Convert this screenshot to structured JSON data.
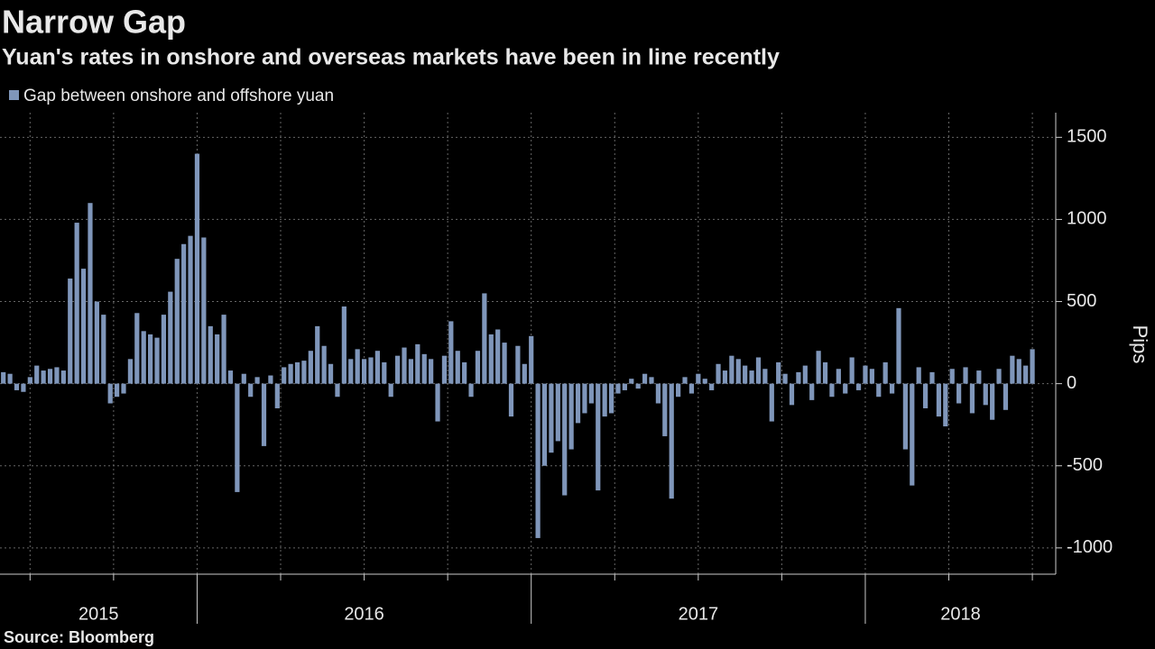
{
  "chart_data": {
    "type": "bar",
    "title": "Narrow Gap",
    "subtitle": "Yuan's rates in onshore and overseas markets have been in line recently",
    "source": "Source: Bloomberg",
    "y_label": "Pips",
    "year_labels": [
      "2015",
      "2016",
      "2017",
      "2018"
    ],
    "xlim": [
      2015.41,
      2018.57
    ],
    "xticks": [
      2015.5,
      2015.75,
      2016,
      2016.25,
      2016.5,
      2016.75,
      2017,
      2017.25,
      2017.5,
      2017.75,
      2018,
      2018.25,
      2018.5
    ],
    "ylim": [
      -1160,
      1650
    ],
    "yticks": [
      -1000,
      -500,
      0,
      500,
      1000,
      1500
    ],
    "grid": true,
    "series": [
      {
        "name": "Gap between onshore and offshore yuan",
        "color": "#7f96ba",
        "x": [
          2015.42,
          2015.44,
          2015.46,
          2015.48,
          2015.5,
          2015.52,
          2015.54,
          2015.56,
          2015.58,
          2015.6,
          2015.62,
          2015.64,
          2015.66,
          2015.68,
          2015.7,
          2015.72,
          2015.74,
          2015.76,
          2015.78,
          2015.8,
          2015.82,
          2015.84,
          2015.86,
          2015.88,
          2015.9,
          2015.92,
          2015.94,
          2015.96,
          2015.98,
          2016.0,
          2016.02,
          2016.04,
          2016.06,
          2016.08,
          2016.1,
          2016.12,
          2016.14,
          2016.16,
          2016.18,
          2016.2,
          2016.22,
          2016.24,
          2016.26,
          2016.28,
          2016.3,
          2016.32,
          2016.34,
          2016.36,
          2016.38,
          2016.4,
          2016.42,
          2016.44,
          2016.46,
          2016.48,
          2016.5,
          2016.52,
          2016.54,
          2016.56,
          2016.58,
          2016.6,
          2016.62,
          2016.64,
          2016.66,
          2016.68,
          2016.7,
          2016.72,
          2016.74,
          2016.76,
          2016.78,
          2016.8,
          2016.82,
          2016.84,
          2016.86,
          2016.88,
          2016.9,
          2016.92,
          2016.94,
          2016.96,
          2016.98,
          2017.0,
          2017.02,
          2017.04,
          2017.06,
          2017.08,
          2017.1,
          2017.12,
          2017.14,
          2017.16,
          2017.18,
          2017.2,
          2017.22,
          2017.24,
          2017.26,
          2017.28,
          2017.3,
          2017.32,
          2017.34,
          2017.36,
          2017.38,
          2017.4,
          2017.42,
          2017.44,
          2017.46,
          2017.48,
          2017.5,
          2017.52,
          2017.54,
          2017.56,
          2017.58,
          2017.6,
          2017.62,
          2017.64,
          2017.66,
          2017.68,
          2017.7,
          2017.72,
          2017.74,
          2017.76,
          2017.78,
          2017.8,
          2017.82,
          2017.84,
          2017.86,
          2017.88,
          2017.9,
          2017.92,
          2017.94,
          2017.96,
          2017.98,
          2018.0,
          2018.02,
          2018.04,
          2018.06,
          2018.08,
          2018.1,
          2018.12,
          2018.14,
          2018.16,
          2018.18,
          2018.2,
          2018.22,
          2018.24,
          2018.26,
          2018.28,
          2018.3,
          2018.32,
          2018.34,
          2018.36,
          2018.38,
          2018.4,
          2018.42,
          2018.44,
          2018.46,
          2018.48,
          2018.5
        ],
        "values": [
          70,
          60,
          -40,
          -50,
          40,
          110,
          80,
          90,
          100,
          80,
          640,
          980,
          700,
          1100,
          500,
          420,
          -120,
          -80,
          -60,
          150,
          430,
          320,
          300,
          280,
          420,
          560,
          760,
          850,
          900,
          1400,
          890,
          350,
          300,
          420,
          80,
          -660,
          60,
          -80,
          40,
          -380,
          50,
          -150,
          100,
          120,
          130,
          140,
          200,
          350,
          230,
          120,
          -80,
          470,
          150,
          210,
          150,
          160,
          200,
          130,
          -80,
          170,
          220,
          150,
          240,
          180,
          150,
          -230,
          170,
          380,
          200,
          130,
          -80,
          200,
          550,
          300,
          330,
          250,
          -200,
          230,
          120,
          290,
          -940,
          -500,
          -420,
          -350,
          -680,
          -400,
          -240,
          -180,
          -120,
          -650,
          -200,
          -180,
          -60,
          -40,
          30,
          -30,
          60,
          40,
          -120,
          -320,
          -700,
          -80,
          40,
          -60,
          60,
          30,
          -40,
          120,
          80,
          170,
          150,
          110,
          80,
          160,
          90,
          -230,
          130,
          60,
          -130,
          70,
          110,
          -100,
          200,
          130,
          -80,
          90,
          -60,
          160,
          -40,
          110,
          90,
          -80,
          130,
          -60,
          460,
          -400,
          -620,
          100,
          -150,
          70,
          -200,
          -260,
          90,
          -120,
          100,
          -180,
          80,
          -130,
          -220,
          90,
          -160,
          170,
          150,
          110,
          210
        ]
      }
    ]
  }
}
